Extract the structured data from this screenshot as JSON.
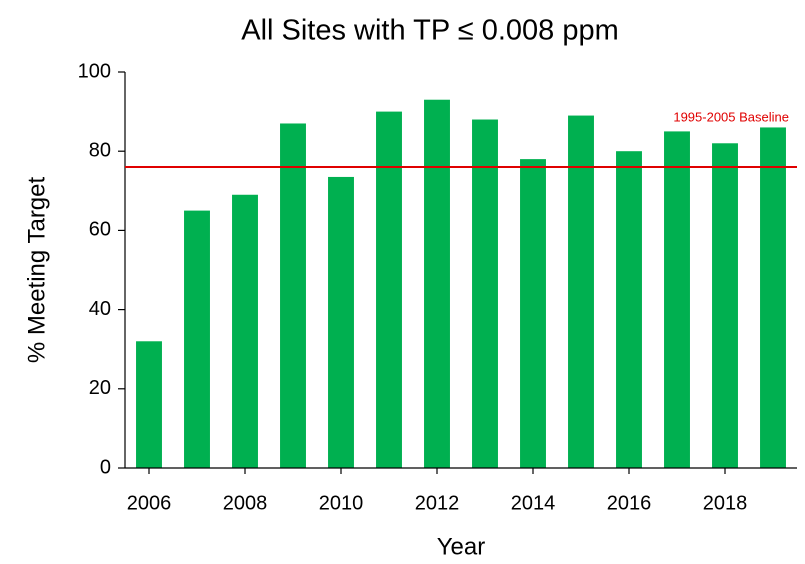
{
  "chart_data": {
    "type": "bar",
    "title": "All Sites with TP ≤ 0.008 ppm",
    "x_label": "Year",
    "y_label": "% Meeting Target",
    "x": [
      2006,
      2007,
      2008,
      2009,
      2010,
      2011,
      2012,
      2013,
      2014,
      2015,
      2016,
      2017,
      2018,
      2019
    ],
    "values": [
      32,
      65,
      69,
      87,
      73.5,
      90,
      93,
      88,
      78,
      89,
      80,
      85,
      82,
      86
    ],
    "color": "#00b050",
    "xlim": [
      2005.5,
      2019.5
    ],
    "xticks": [
      2006,
      2008,
      2010,
      2012,
      2014,
      2016,
      2018
    ],
    "ylim": [
      0,
      100
    ],
    "yticks": [
      0,
      20,
      40,
      60,
      80,
      100
    ],
    "baseline": {
      "value": 76,
      "label": "1995-2005 Baseline",
      "color": "#e00000"
    },
    "grid": false
  }
}
